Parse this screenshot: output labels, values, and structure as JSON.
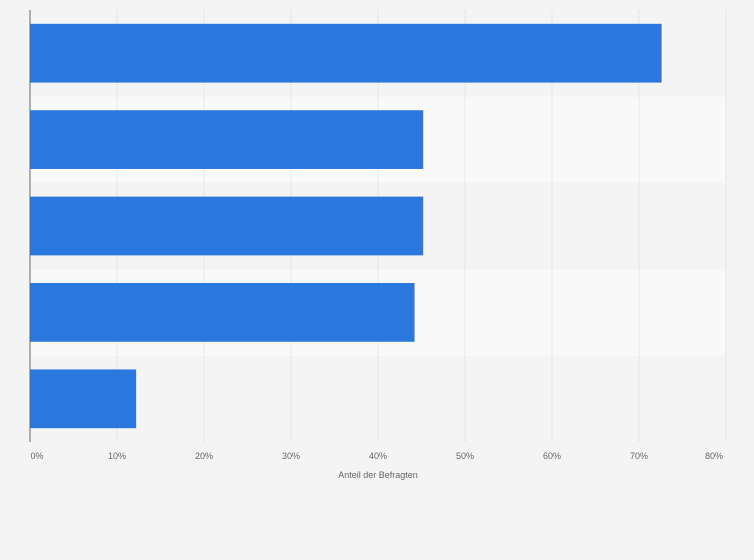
{
  "chart_data": {
    "type": "bar",
    "orientation": "horizontal",
    "categories": [
      "",
      "",
      "",
      "",
      ""
    ],
    "values": [
      72.6,
      45.2,
      45.2,
      44.2,
      12.2
    ],
    "xlabel": "Anteil der Befragten",
    "ylabel": "",
    "xlim": [
      0,
      80
    ],
    "x_ticks": [
      "0%",
      "10%",
      "20%",
      "30%",
      "40%",
      "50%",
      "60%",
      "70%",
      "80%"
    ],
    "grid": true,
    "legend": "none",
    "colors": {
      "bar": "#2a77dd",
      "band_even": "#f4f4f4",
      "band_odd": "#f9f9f9",
      "grid": "#d9d9d9",
      "axis": "#666666"
    }
  }
}
